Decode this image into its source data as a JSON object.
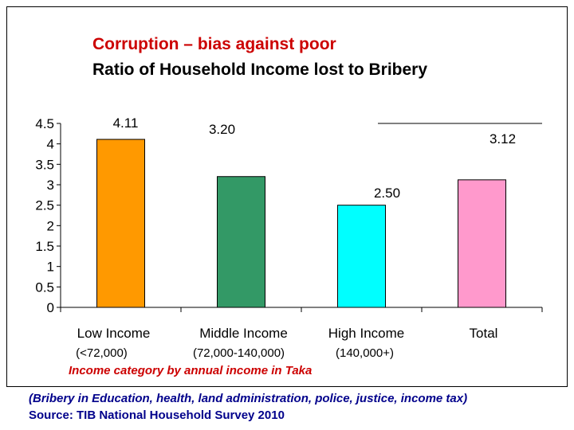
{
  "chart_data": {
    "type": "bar",
    "title": "Corruption – bias against poor",
    "subtitle": "Ratio of Household Income lost to Bribery",
    "categories": [
      "Low Income",
      "Middle Income",
      "High Income",
      "Total"
    ],
    "category_subtitles": [
      "(<72,000)",
      "(72,000-140,000)",
      "(140,000+)",
      ""
    ],
    "values": [
      4.11,
      3.2,
      2.5,
      3.12
    ],
    "data_labels": [
      "4.11",
      "3.20",
      "2.50",
      "3.12"
    ],
    "bar_colors": [
      "#ff9900",
      "#339966",
      "#00ffff",
      "#ff99cc"
    ],
    "xlabel": "Income category by annual income in Taka",
    "ylabel": "",
    "ylim": [
      0,
      4.5
    ],
    "yticks": [
      "0",
      "0.5",
      "1",
      "1.5",
      "2",
      "2.5",
      "3",
      "3.5",
      "4",
      "4.5"
    ],
    "grid": false,
    "legend": "none"
  },
  "footer": {
    "note": "(Bribery in Education, health, land administration, police, justice, income tax)",
    "source": "Source: TIB National Household Survey 2010"
  }
}
